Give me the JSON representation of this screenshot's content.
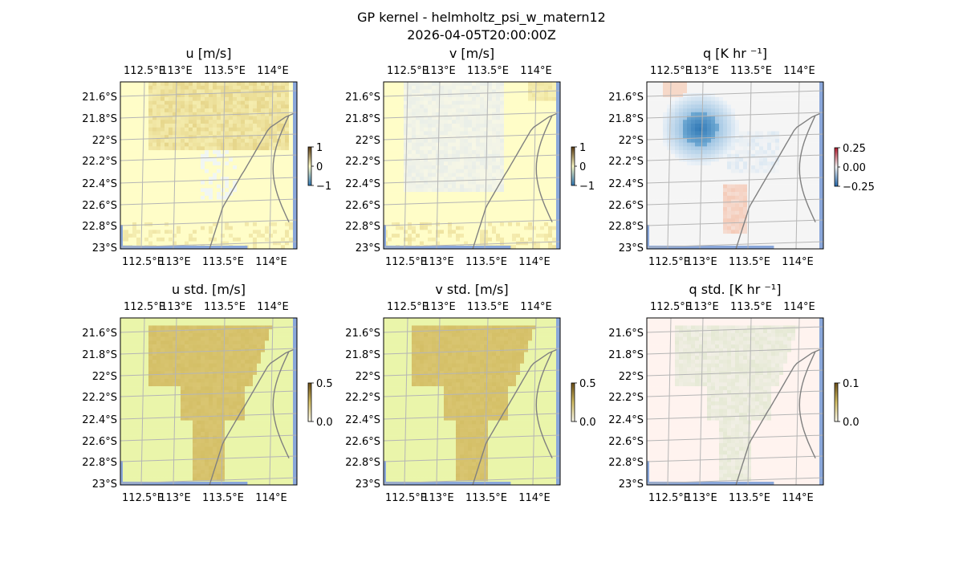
{
  "figure": {
    "title": "GP kernel - helmholtz_psi_w_matern12",
    "timestamp": "2026-04-05T20:00:00Z"
  },
  "colors": {
    "zero_yellow": "#fffdc8",
    "std_base": "#eaf5aa",
    "std_high": "#d4bf66",
    "q_zero": "#f5f5f5",
    "q_std_base": "#fff3ef",
    "ocean_edge": "#8aa7da",
    "coast": "#808080",
    "grid": "#b5b5b5"
  },
  "chart_data": [
    {
      "type": "heatmap",
      "title": "u [m/s]",
      "colorbar": {
        "ticks": [
          "1",
          "0",
          "−1"
        ],
        "range": [
          -1,
          1
        ]
      },
      "x_ticks": [
        "112.5°E",
        "113°E",
        "113.5°E",
        "114°E"
      ],
      "y_ticks": [
        "21.6°S",
        "21.8°S",
        "22°S",
        "22.2°S",
        "22.4°S",
        "22.6°S",
        "22.8°S",
        "23°S"
      ],
      "grid": true
    },
    {
      "type": "heatmap",
      "title": "v [m/s]",
      "colorbar": {
        "ticks": [
          "1",
          "0",
          "−1"
        ],
        "range": [
          -1,
          1
        ]
      },
      "x_ticks": [
        "112.5°E",
        "113°E",
        "113.5°E",
        "114°E"
      ],
      "y_ticks": [
        "21.6°S",
        "21.8°S",
        "22°S",
        "22.2°S",
        "22.4°S",
        "22.6°S",
        "22.8°S",
        "23°S"
      ],
      "grid": true
    },
    {
      "type": "heatmap",
      "title": "q [K hr ⁻¹]",
      "colorbar": {
        "ticks": [
          "0.25",
          "0.00",
          "−0.25"
        ],
        "range": [
          -0.35,
          0.35
        ]
      },
      "x_ticks": [
        "112.5°E",
        "113°E",
        "113.5°E",
        "114°E"
      ],
      "y_ticks": [
        "21.6°S",
        "21.8°S",
        "22°S",
        "22.2°S",
        "22.4°S",
        "22.6°S",
        "22.8°S",
        "23°S"
      ],
      "grid": true
    },
    {
      "type": "heatmap",
      "title": "u std. [m/s]",
      "colorbar": {
        "ticks": [
          "0.5",
          "0.0"
        ],
        "range": [
          0,
          0.5
        ]
      },
      "x_ticks": [
        "112.5°E",
        "113°E",
        "113.5°E",
        "114°E"
      ],
      "y_ticks": [
        "21.6°S",
        "21.8°S",
        "22°S",
        "22.2°S",
        "22.4°S",
        "22.6°S",
        "22.8°S",
        "23°S"
      ],
      "grid": true
    },
    {
      "type": "heatmap",
      "title": "v std. [m/s]",
      "colorbar": {
        "ticks": [
          "0.5",
          "0.0"
        ],
        "range": [
          0,
          0.5
        ]
      },
      "x_ticks": [
        "112.5°E",
        "113°E",
        "113.5°E",
        "114°E"
      ],
      "y_ticks": [
        "21.6°S",
        "21.8°S",
        "22°S",
        "22.2°S",
        "22.4°S",
        "22.6°S",
        "22.8°S",
        "23°S"
      ],
      "grid": true
    },
    {
      "type": "heatmap",
      "title": "q std. [K hr ⁻¹]",
      "colorbar": {
        "ticks": [
          "0.1",
          "0.0"
        ],
        "range": [
          0,
          0.1
        ]
      },
      "x_ticks": [
        "112.5°E",
        "113°E",
        "113.5°E",
        "114°E"
      ],
      "y_ticks": [
        "21.6°S",
        "21.8°S",
        "22°S",
        "22.2°S",
        "22.4°S",
        "22.6°S",
        "22.8°S",
        "23°S"
      ],
      "grid": true
    }
  ]
}
